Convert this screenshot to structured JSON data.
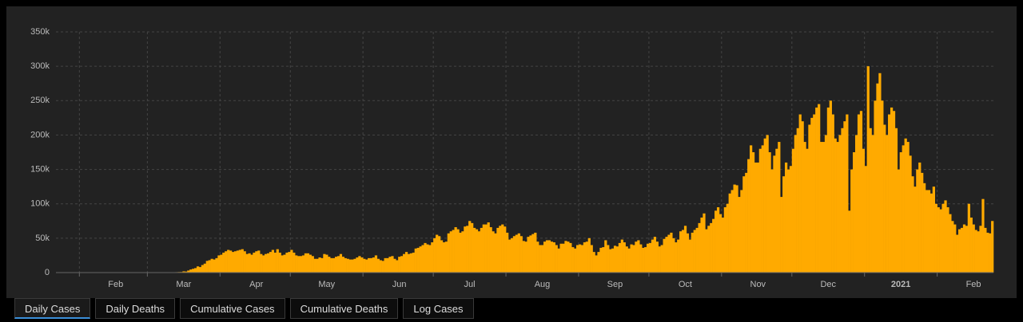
{
  "chart_data": {
    "type": "bar",
    "color": "#ffaa00",
    "grid": true,
    "values": [
      1,
      0,
      1,
      1,
      0,
      1,
      0,
      0,
      1,
      0,
      1,
      0,
      0,
      0,
      1,
      0,
      0,
      0,
      0,
      0,
      0,
      0,
      0,
      0,
      0,
      0,
      0,
      0,
      0,
      0,
      0,
      1,
      0,
      0,
      0,
      1,
      0,
      2,
      5,
      5,
      20,
      15,
      30,
      40,
      60,
      100,
      120,
      170,
      280,
      400,
      500,
      650,
      800,
      900,
      1800,
      1500,
      3000,
      4500,
      5500,
      6500,
      9000,
      8000,
      11000,
      13000,
      17000,
      18000,
      20000,
      19000,
      21000,
      25000,
      26000,
      29000,
      31000,
      33000,
      32000,
      30000,
      31000,
      32000,
      33000,
      34000,
      31000,
      27000,
      28000,
      26000,
      29000,
      31000,
      32000,
      27000,
      25000,
      27000,
      28000,
      30000,
      33000,
      29000,
      34000,
      29000,
      25000,
      26000,
      29000,
      30000,
      33000,
      29000,
      25000,
      24000,
      24000,
      25000,
      28000,
      28000,
      26000,
      24000,
      20000,
      20000,
      22000,
      21000,
      27000,
      26000,
      23000,
      21000,
      21000,
      23000,
      24000,
      27000,
      23000,
      21000,
      20000,
      19000,
      19000,
      20000,
      22000,
      24000,
      22000,
      20000,
      19000,
      21000,
      21000,
      22000,
      25000,
      20000,
      18000,
      17000,
      21000,
      21000,
      23000,
      24000,
      20000,
      18000,
      23000,
      24000,
      27000,
      30000,
      27000,
      28000,
      29000,
      35000,
      36000,
      38000,
      40000,
      43000,
      41000,
      40000,
      44000,
      50000,
      55000,
      53000,
      47000,
      44000,
      45000,
      57000,
      60000,
      62000,
      66000,
      63000,
      58000,
      60000,
      67000,
      68000,
      75000,
      72000,
      65000,
      63000,
      60000,
      65000,
      70000,
      70000,
      73000,
      66000,
      60000,
      57000,
      65000,
      68000,
      70000,
      67000,
      58000,
      48000,
      50000,
      53000,
      55000,
      57000,
      53000,
      46000,
      45000,
      52000,
      54000,
      56000,
      58000,
      45000,
      40000,
      40000,
      45000,
      47000,
      47000,
      45000,
      44000,
      40000,
      35000,
      42000,
      42000,
      46000,
      45000,
      43000,
      37000,
      35000,
      40000,
      41000,
      40000,
      44000,
      45000,
      50000,
      40000,
      30000,
      25000,
      30000,
      36000,
      37000,
      47000,
      40000,
      34000,
      35000,
      39000,
      38000,
      43000,
      48000,
      44000,
      38000,
      35000,
      41000,
      40000,
      45000,
      47000,
      41000,
      36000,
      37000,
      42000,
      43000,
      48000,
      52000,
      45000,
      38000,
      40000,
      49000,
      52000,
      55000,
      58000,
      50000,
      44000,
      48000,
      60000,
      62000,
      68000,
      57000,
      48000,
      58000,
      62000,
      65000,
      72000,
      80000,
      86000,
      63000,
      68000,
      72000,
      78000,
      90000,
      95000,
      85000,
      80000,
      95000,
      100000,
      115000,
      120000,
      128000,
      127000,
      110000,
      120000,
      140000,
      145000,
      165000,
      185000,
      175000,
      160000,
      160000,
      180000,
      185000,
      195000,
      200000,
      175000,
      150000,
      170000,
      180000,
      190000,
      110000,
      140000,
      160000,
      150000,
      155000,
      180000,
      200000,
      210000,
      230000,
      220000,
      190000,
      180000,
      215000,
      225000,
      230000,
      240000,
      245000,
      190000,
      190000,
      200000,
      240000,
      250000,
      230000,
      195000,
      190000,
      200000,
      210000,
      220000,
      230000,
      90000,
      150000,
      175000,
      200000,
      230000,
      235000,
      180000,
      155000,
      300000,
      210000,
      200000,
      250000,
      275000,
      290000,
      250000,
      215000,
      200000,
      230000,
      240000,
      235000,
      210000,
      150000,
      175000,
      185000,
      195000,
      190000,
      170000,
      140000,
      125000,
      150000,
      160000,
      145000,
      130000,
      120000,
      120000,
      115000,
      125000,
      100000,
      95000,
      92000,
      100000,
      105000,
      95000,
      85000,
      75000,
      70000,
      55000,
      63000,
      65000,
      70000,
      68000,
      100000,
      80000,
      70000,
      62000,
      60000,
      68000,
      107000,
      65000,
      58000,
      57000,
      75000
    ],
    "xlim": [
      0,
      400
    ],
    "xticks": [
      {
        "value": 10,
        "label": "Feb"
      },
      {
        "value": 39,
        "label": "Mar"
      },
      {
        "value": 70,
        "label": "Apr"
      },
      {
        "value": 100,
        "label": "May"
      },
      {
        "value": 131,
        "label": "Jun"
      },
      {
        "value": 161,
        "label": "Jul"
      },
      {
        "value": 192,
        "label": "Aug"
      },
      {
        "value": 223,
        "label": "Sep"
      },
      {
        "value": 253,
        "label": "Oct"
      },
      {
        "value": 284,
        "label": "Nov"
      },
      {
        "value": 314,
        "label": "Dec"
      },
      {
        "value": 345,
        "label": "2021"
      },
      {
        "value": 376,
        "label": "Feb"
      }
    ],
    "ylim": [
      0,
      350000
    ],
    "yticks": [
      0,
      {
        "value": 50000,
        "label": "50k"
      },
      {
        "value": 100000,
        "label": "100k"
      },
      {
        "value": 150000,
        "label": "150k"
      },
      {
        "value": 200000,
        "label": "200k"
      },
      {
        "value": 250000,
        "label": "250k"
      },
      {
        "value": 300000,
        "label": "300k"
      },
      {
        "value": 350000,
        "label": "350k"
      }
    ]
  },
  "tabs": [
    "Daily Cases",
    "Daily Deaths",
    "Cumulative Cases",
    "Cumulative Deaths",
    "Log Cases"
  ]
}
